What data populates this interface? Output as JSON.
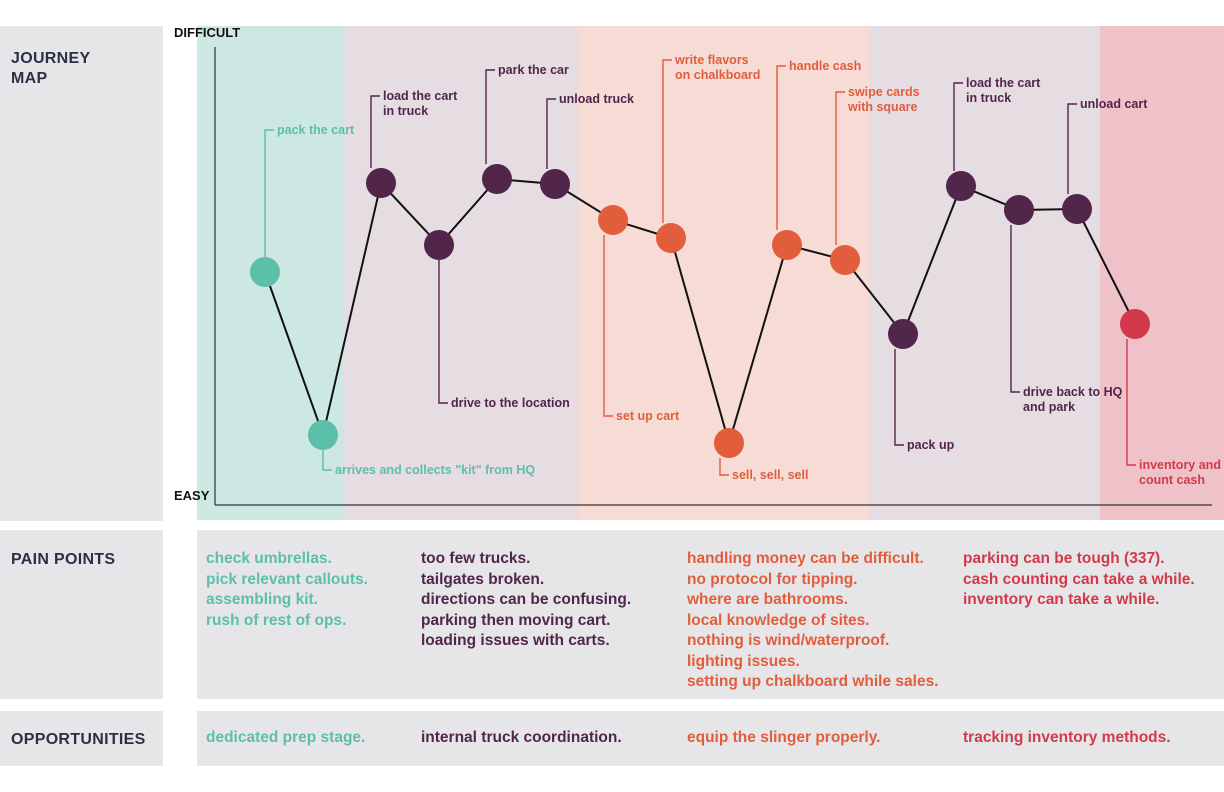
{
  "sections": {
    "journey_map": "JOURNEY\nMAP",
    "pain_points": "PAIN POINTS",
    "opportunities": "OPPORTUNITIES"
  },
  "axis": {
    "top_label": "DIFFICULT",
    "bottom_label": "EASY"
  },
  "colors": {
    "teal": "#5bbfa9",
    "purple": "#52254a",
    "orange": "#e25d3c",
    "red": "#d23a4c",
    "band_teal": "#cde8e2",
    "band_lavender": "#e6dde3",
    "band_peach": "#f7dcd6",
    "band_rose": "#efc1c8",
    "panel_gray": "#e6e6e9"
  },
  "points": [
    {
      "label": "pack the cart",
      "color": "teal"
    },
    {
      "label": "arrives and collects \"kit\" from HQ",
      "color": "teal"
    },
    {
      "label": "load the cart\nin truck",
      "color": "purple"
    },
    {
      "label": "drive to the location",
      "color": "purple"
    },
    {
      "label": "park the car",
      "color": "purple"
    },
    {
      "label": "unload truck",
      "color": "purple"
    },
    {
      "label": "set up cart",
      "color": "orange"
    },
    {
      "label": "write flavors\non chalkboard",
      "color": "orange"
    },
    {
      "label": "sell, sell, sell",
      "color": "orange"
    },
    {
      "label": "handle cash",
      "color": "orange"
    },
    {
      "label": "swipe cards\nwith square",
      "color": "orange"
    },
    {
      "label": "pack up",
      "color": "purple"
    },
    {
      "label": "load the cart\nin truck",
      "color": "purple"
    },
    {
      "label": "drive back to HQ\nand park",
      "color": "purple"
    },
    {
      "label": "unload cart",
      "color": "purple"
    },
    {
      "label": "inventory and\ncount cash",
      "color": "red"
    }
  ],
  "pain_points": [
    {
      "color": "#5bbfa9",
      "items": [
        "check umbrellas.",
        "pick relevant callouts.",
        "assembling kit.",
        "rush of rest of ops."
      ]
    },
    {
      "color": "#52254a",
      "items": [
        "too few trucks.",
        "tailgates broken.",
        "directions can be confusing.",
        "parking then moving cart.",
        "loading issues with carts."
      ]
    },
    {
      "color": "#e25d3c",
      "items": [
        "handling money can be difficult.",
        "no protocol for tipping.",
        "where are bathrooms.",
        "local knowledge of sites.",
        "nothing is wind/waterproof.",
        "lighting issues.",
        "setting up chalkboard while sales."
      ]
    },
    {
      "color": "#d23a4c",
      "items": [
        "parking can be tough (337).",
        "cash counting can take a while.",
        "inventory can take a while."
      ]
    }
  ],
  "opportunities": [
    {
      "color": "#5bbfa9",
      "text": "dedicated prep stage."
    },
    {
      "color": "#52254a",
      "text": "internal truck coordination."
    },
    {
      "color": "#e25d3c",
      "text": "equip the slinger properly."
    },
    {
      "color": "#d23a4c",
      "text": "tracking inventory methods."
    }
  ]
}
